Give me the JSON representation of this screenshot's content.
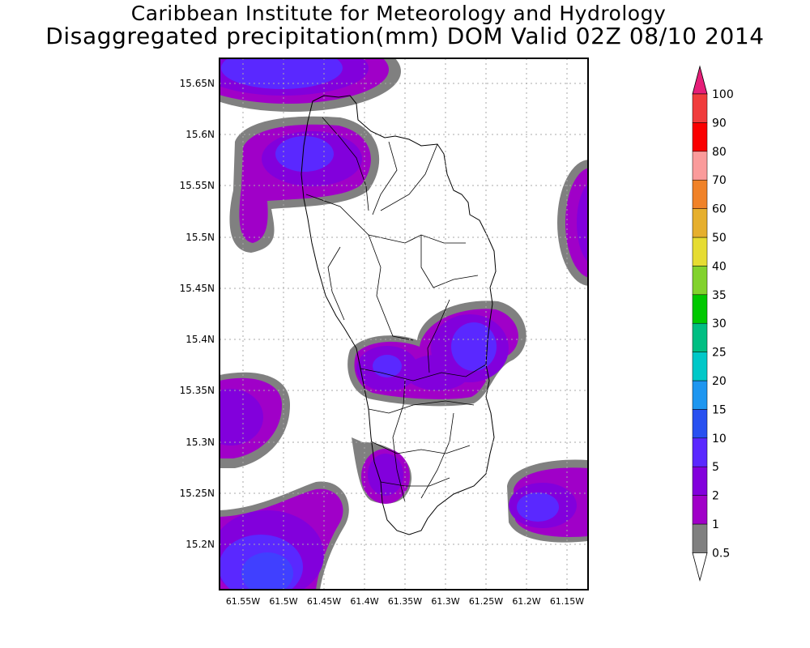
{
  "header": {
    "title_line1": "Caribbean Institute for Meteorology and Hydrology",
    "title_line2": "Disaggregated precipitation(mm) DOM Valid 02Z 08/10 2014"
  },
  "map": {
    "lat_labels": [
      "15.65N",
      "15.6N",
      "15.55N",
      "15.5N",
      "15.45N",
      "15.4N",
      "15.35N",
      "15.3N",
      "15.25N",
      "15.2N"
    ],
    "lon_labels": [
      "61.55W",
      "61.5W",
      "61.45W",
      "61.4W",
      "61.35W",
      "61.3W",
      "61.25W",
      "61.2W",
      "61.15W"
    ]
  },
  "legend": {
    "levels": [
      "0.5",
      "1",
      "2",
      "5",
      "10",
      "15",
      "20",
      "25",
      "30",
      "35",
      "40",
      "50",
      "60",
      "70",
      "80",
      "90",
      "100"
    ],
    "colors": [
      "#ffffff",
      "#808080",
      "#a000c8",
      "#8200dc",
      "#5a28ff",
      "#2850f0",
      "#1e96f0",
      "#00c8c8",
      "#00be82",
      "#00c800",
      "#82d22d",
      "#e6dc32",
      "#e6af2d",
      "#f08228",
      "#fa9b9b",
      "#fa0000",
      "#f03c3c",
      "#e61e78"
    ]
  },
  "chart_data": {
    "type": "heatmap",
    "title": "Disaggregated precipitation(mm) DOM Valid 02Z 08/10 2014",
    "x_ticks": [
      "61.55W",
      "61.5W",
      "61.45W",
      "61.4W",
      "61.35W",
      "61.3W",
      "61.25W",
      "61.2W",
      "61.15W"
    ],
    "y_ticks": [
      "15.2N",
      "15.25N",
      "15.3N",
      "15.35N",
      "15.4N",
      "15.45N",
      "15.5N",
      "15.55N",
      "15.6N",
      "15.65N"
    ],
    "color_scale": [
      "0.5",
      "1",
      "2",
      "5",
      "10",
      "15",
      "20",
      "25",
      "30",
      "35",
      "40",
      "50",
      "60",
      "70",
      "80",
      "90",
      "100"
    ],
    "grid": true
  }
}
